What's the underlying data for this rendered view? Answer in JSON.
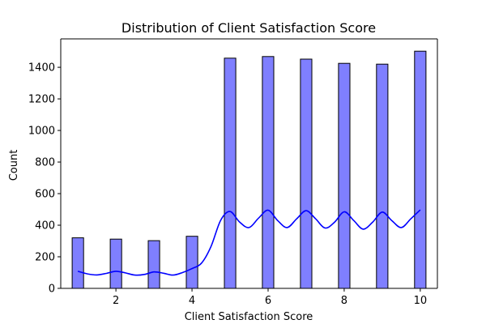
{
  "chart_data": {
    "type": "bar",
    "title": "Distribution of Client Satisfaction Score",
    "xlabel": "Client Satisfaction Score",
    "ylabel": "Count",
    "xlim": [
      0.55,
      10.45
    ],
    "ylim": [
      0,
      1580
    ],
    "x_ticks": [
      2,
      4,
      6,
      8,
      10
    ],
    "y_ticks": [
      0,
      200,
      400,
      600,
      800,
      1000,
      1200,
      1400
    ],
    "bin_width": 0.3,
    "categories": [
      1,
      2,
      3,
      4,
      5,
      6,
      7,
      8,
      9,
      10
    ],
    "values": [
      320,
      312,
      302,
      330,
      1458,
      1468,
      1452,
      1425,
      1420,
      1502
    ],
    "kde": {
      "x": [
        1.0,
        1.25,
        1.5,
        1.75,
        2.0,
        2.25,
        2.5,
        2.75,
        3.0,
        3.25,
        3.5,
        3.75,
        4.0,
        4.25,
        4.5,
        4.75,
        5.0,
        5.25,
        5.5,
        5.75,
        6.0,
        6.25,
        6.5,
        6.75,
        7.0,
        7.25,
        7.5,
        7.75,
        8.0,
        8.25,
        8.5,
        8.75,
        9.0,
        9.25,
        9.5,
        9.75,
        10.0
      ],
      "y": [
        108,
        92,
        85,
        95,
        108,
        98,
        84,
        88,
        104,
        96,
        84,
        100,
        125,
        160,
        265,
        430,
        487,
        420,
        385,
        445,
        495,
        430,
        385,
        440,
        492,
        440,
        382,
        420,
        485,
        430,
        375,
        420,
        483,
        430,
        385,
        440,
        497
      ]
    },
    "colors": {
      "bar_fill": "#7f7fff",
      "bar_edge": "#000000",
      "kde_line": "#0000ff"
    },
    "grid": false,
    "legend": "none"
  }
}
